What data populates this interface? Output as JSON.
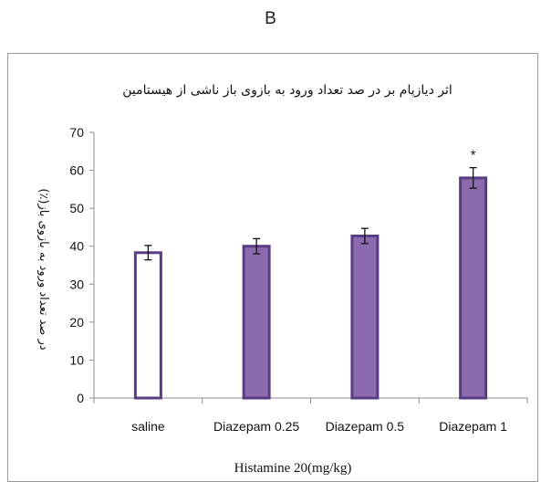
{
  "panel_label": "B",
  "chart_data": {
    "type": "bar",
    "title": "اثر دیازپام بر در صد تعداد ورود به بازوی باز ناشی از هیستامین",
    "xlabel": "Histamine 20(mg/kg)",
    "ylabel": "در صد تعداد ورود به بازوی باز(٪)",
    "categories": [
      "saline",
      "Diazepam 0.25",
      "Diazepam 0.5",
      "Diazepam 1"
    ],
    "values": [
      38.3,
      40.0,
      42.7,
      58.0
    ],
    "errors": [
      1.9,
      2.0,
      2.0,
      2.7
    ],
    "annotations": [
      "",
      "",
      "",
      "*"
    ],
    "fill_colors": [
      "#ffffff",
      "#8a6bad",
      "#8a6bad",
      "#8a6bad"
    ],
    "edge_color": "#5a3c83",
    "ylim": [
      0,
      70
    ],
    "yticks": [
      0,
      10,
      20,
      30,
      40,
      50,
      60,
      70
    ],
    "grid": false,
    "legend": "none"
  }
}
